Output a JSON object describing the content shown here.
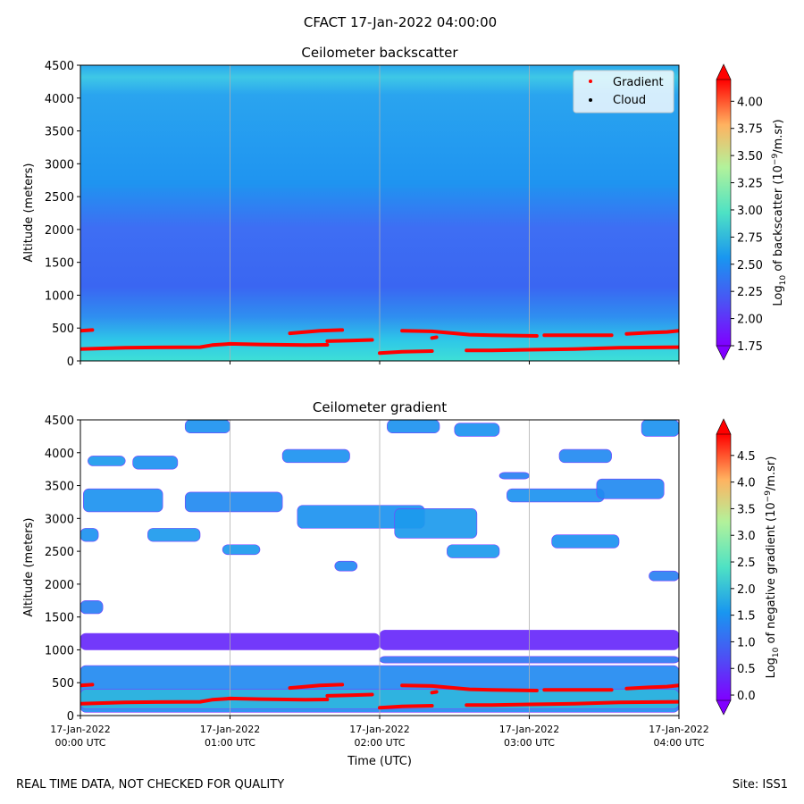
{
  "figure": {
    "title": "CFACT 17-Jan-2022 04:00:00",
    "footer_left": "REAL TIME DATA, NOT CHECKED FOR QUALITY",
    "footer_right": "Site: ISS1"
  },
  "chart_data": [
    {
      "type": "heatmap",
      "title": "Ceilometer backscatter",
      "ylabel": "Altitude (meters)",
      "xlabel": "",
      "ylim": [
        0,
        4500
      ],
      "yticks": [
        "0",
        "500",
        "1000",
        "1500",
        "2000",
        "2500",
        "3000",
        "3500",
        "4000",
        "4500"
      ],
      "xlim_hours": [
        0,
        4
      ],
      "grid": "vertical lines at each hour",
      "colorbar": {
        "label": "Log10 of backscatter (10^-9/m.sr)",
        "range": [
          1.75,
          4.2
        ],
        "ticks": [
          "1.75",
          "2.00",
          "2.25",
          "2.50",
          "2.75",
          "3.00",
          "3.25",
          "3.50",
          "3.75",
          "4.00"
        ],
        "colormap": "rainbow"
      },
      "legend": {
        "position": "top-right",
        "entries": [
          {
            "label": "Gradient",
            "color": "#ff0000"
          },
          {
            "label": "Cloud",
            "color": "#000000"
          }
        ]
      },
      "series": [
        {
          "name": "Gradient",
          "segments": [
            [
              [
                0.0,
                460
              ],
              [
                0.08,
                470
              ]
            ],
            [
              [
                0.0,
                180
              ],
              [
                0.15,
                190
              ],
              [
                0.3,
                200
              ],
              [
                0.5,
                205
              ],
              [
                0.8,
                210
              ],
              [
                0.88,
                240
              ],
              [
                1.0,
                260
              ],
              [
                1.2,
                250
              ],
              [
                1.5,
                240
              ],
              [
                1.65,
                245
              ]
            ],
            [
              [
                1.4,
                420
              ],
              [
                1.6,
                460
              ],
              [
                1.75,
                470
              ]
            ],
            [
              [
                1.65,
                300
              ],
              [
                1.8,
                310
              ],
              [
                1.95,
                320
              ]
            ],
            [
              [
                2.0,
                120
              ],
              [
                2.15,
                140
              ],
              [
                2.35,
                150
              ]
            ],
            [
              [
                2.15,
                460
              ],
              [
                2.35,
                450
              ],
              [
                2.5,
                420
              ],
              [
                2.6,
                400
              ],
              [
                2.75,
                390
              ],
              [
                3.05,
                380
              ]
            ],
            [
              [
                2.35,
                350
              ],
              [
                2.38,
                360
              ]
            ],
            [
              [
                2.58,
                160
              ],
              [
                2.75,
                160
              ],
              [
                3.0,
                170
              ],
              [
                3.3,
                180
              ],
              [
                3.6,
                200
              ],
              [
                4.0,
                210
              ]
            ],
            [
              [
                3.1,
                390
              ],
              [
                3.3,
                390
              ],
              [
                3.55,
                390
              ]
            ],
            [
              [
                3.65,
                410
              ],
              [
                3.8,
                430
              ],
              [
                3.92,
                440
              ],
              [
                4.0,
                460
              ]
            ]
          ]
        }
      ]
    },
    {
      "type": "heatmap",
      "title": "Ceilometer gradient",
      "ylabel": "Altitude (meters)",
      "xlabel": "Time (UTC)",
      "ylim": [
        0,
        4500
      ],
      "yticks": [
        "0",
        "500",
        "1000",
        "1500",
        "2000",
        "2500",
        "3000",
        "3500",
        "4000",
        "4500"
      ],
      "xticks": [
        {
          "top": "17-Jan-2022",
          "bottom": "00:00 UTC"
        },
        {
          "top": "17-Jan-2022",
          "bottom": "01:00 UTC"
        },
        {
          "top": "17-Jan-2022",
          "bottom": "02:00 UTC"
        },
        {
          "top": "17-Jan-2022",
          "bottom": "03:00 UTC"
        },
        {
          "top": "17-Jan-2022",
          "bottom": "04:00 UTC"
        }
      ],
      "xlim_hours": [
        0,
        4
      ],
      "grid": "vertical lines at each hour",
      "colorbar": {
        "label": "Log10 of negative gradient (10^-9/m.sr)",
        "range": [
          -0.1,
          4.9
        ],
        "ticks": [
          "0.0",
          "0.5",
          "1.0",
          "1.5",
          "2.0",
          "2.5",
          "3.0",
          "3.5",
          "4.0",
          "4.5"
        ],
        "colormap": "rainbow"
      },
      "patches": [
        {
          "x0": 0.0,
          "x1": 4.0,
          "y0": 50,
          "y1": 760,
          "level": 1.4
        },
        {
          "x0": 0.0,
          "x1": 4.0,
          "y0": 100,
          "y1": 400,
          "level": 1.9
        },
        {
          "x0": 0.0,
          "x1": 2.0,
          "y0": 1000,
          "y1": 1250,
          "level": 0.3
        },
        {
          "x0": 2.0,
          "x1": 4.0,
          "y0": 1000,
          "y1": 1300,
          "level": 0.3
        },
        {
          "x0": 2.0,
          "x1": 4.0,
          "y0": 800,
          "y1": 900,
          "level": 1.2
        },
        {
          "x0": 0.0,
          "x1": 0.15,
          "y0": 1550,
          "y1": 1750,
          "level": 1.3
        },
        {
          "x0": 0.0,
          "x1": 0.12,
          "y0": 2650,
          "y1": 2850,
          "level": 1.5
        },
        {
          "x0": 0.45,
          "x1": 0.8,
          "y0": 2650,
          "y1": 2850,
          "level": 1.6
        },
        {
          "x0": 0.95,
          "x1": 1.2,
          "y0": 2450,
          "y1": 2600,
          "level": 1.6
        },
        {
          "x0": 0.02,
          "x1": 0.55,
          "y0": 3100,
          "y1": 3450,
          "level": 1.5
        },
        {
          "x0": 0.7,
          "x1": 1.35,
          "y0": 3100,
          "y1": 3400,
          "level": 1.4
        },
        {
          "x0": 1.45,
          "x1": 2.3,
          "y0": 2850,
          "y1": 3200,
          "level": 1.5
        },
        {
          "x0": 2.1,
          "x1": 2.65,
          "y0": 2700,
          "y1": 3150,
          "level": 1.6
        },
        {
          "x0": 2.45,
          "x1": 2.8,
          "y0": 2400,
          "y1": 2600,
          "level": 1.6
        },
        {
          "x0": 2.85,
          "x1": 3.5,
          "y0": 3250,
          "y1": 3450,
          "level": 1.5
        },
        {
          "x0": 3.45,
          "x1": 3.9,
          "y0": 3300,
          "y1": 3600,
          "level": 1.4
        },
        {
          "x0": 3.15,
          "x1": 3.6,
          "y0": 2550,
          "y1": 2750,
          "level": 1.5
        },
        {
          "x0": 3.8,
          "x1": 4.0,
          "y0": 2050,
          "y1": 2200,
          "level": 1.3
        },
        {
          "x0": 0.05,
          "x1": 0.3,
          "y0": 3800,
          "y1": 3950,
          "level": 1.6
        },
        {
          "x0": 0.35,
          "x1": 0.65,
          "y0": 3750,
          "y1": 3950,
          "level": 1.5
        },
        {
          "x0": 1.35,
          "x1": 1.8,
          "y0": 3850,
          "y1": 4050,
          "level": 1.5
        },
        {
          "x0": 2.05,
          "x1": 2.4,
          "y0": 4300,
          "y1": 4500,
          "level": 1.5
        },
        {
          "x0": 2.5,
          "x1": 2.8,
          "y0": 4250,
          "y1": 4450,
          "level": 1.5
        },
        {
          "x0": 0.7,
          "x1": 1.0,
          "y0": 4300,
          "y1": 4500,
          "level": 1.5
        },
        {
          "x0": 3.2,
          "x1": 3.55,
          "y0": 3850,
          "y1": 4050,
          "level": 1.4
        },
        {
          "x0": 3.75,
          "x1": 4.0,
          "y0": 4250,
          "y1": 4500,
          "level": 1.5
        },
        {
          "x0": 2.8,
          "x1": 3.0,
          "y0": 3600,
          "y1": 3700,
          "level": 1.3
        },
        {
          "x0": 1.7,
          "x1": 1.85,
          "y0": 2200,
          "y1": 2350,
          "level": 1.4
        }
      ]
    }
  ]
}
